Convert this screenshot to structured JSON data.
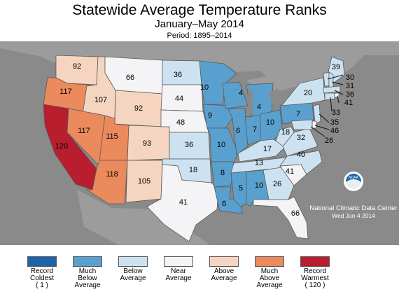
{
  "header": {
    "title": "Statewide Average Temperature Ranks",
    "subtitle": "January–May 2014",
    "period": "Period: 1895–2014"
  },
  "colors": {
    "record_coldest": "#1c63ab",
    "much_below": "#5aa0cf",
    "below": "#cde2f1",
    "near": "#f4f4f6",
    "above": "#f6d5c0",
    "much_above": "#ea8a5d",
    "record_warmest": "#b81e2e",
    "ocean": "#8a8a8a"
  },
  "legend": [
    {
      "label": "Record\nColdest\n( 1 )",
      "color": "#1c63ab"
    },
    {
      "label": "Much\nBelow\nAverage",
      "color": "#5aa0cf"
    },
    {
      "label": "Below\nAverage",
      "color": "#cde2f1"
    },
    {
      "label": "Near\nAverage",
      "color": "#f4f4f6"
    },
    {
      "label": "Above\nAverage",
      "color": "#f6d5c0"
    },
    {
      "label": "Much\nAbove\nAverage",
      "color": "#ea8a5d"
    },
    {
      "label": "Record\nWarmest\n( 120 )",
      "color": "#b81e2e"
    }
  ],
  "states": [
    {
      "name": "WA",
      "rank": "92",
      "category": "above"
    },
    {
      "name": "OR",
      "rank": "117",
      "category": "much_above"
    },
    {
      "name": "CA",
      "rank": "120",
      "category": "record_warmest"
    },
    {
      "name": "ID",
      "rank": "107",
      "category": "above"
    },
    {
      "name": "NV",
      "rank": "117",
      "category": "much_above"
    },
    {
      "name": "MT",
      "rank": "66",
      "category": "near"
    },
    {
      "name": "WY",
      "rank": "92",
      "category": "above"
    },
    {
      "name": "UT",
      "rank": "115",
      "category": "much_above"
    },
    {
      "name": "AZ",
      "rank": "118",
      "category": "much_above"
    },
    {
      "name": "CO",
      "rank": "93",
      "category": "above"
    },
    {
      "name": "NM",
      "rank": "105",
      "category": "above"
    },
    {
      "name": "ND",
      "rank": "36",
      "category": "below"
    },
    {
      "name": "SD",
      "rank": "44",
      "category": "near"
    },
    {
      "name": "NE",
      "rank": "48",
      "category": "near"
    },
    {
      "name": "KS",
      "rank": "36",
      "category": "below"
    },
    {
      "name": "OK",
      "rank": "18",
      "category": "below"
    },
    {
      "name": "TX",
      "rank": "41",
      "category": "near"
    },
    {
      "name": "MN",
      "rank": "10",
      "category": "much_below"
    },
    {
      "name": "IA",
      "rank": "9",
      "category": "much_below"
    },
    {
      "name": "MO",
      "rank": "10",
      "category": "much_below"
    },
    {
      "name": "AR",
      "rank": "8",
      "category": "much_below"
    },
    {
      "name": "LA",
      "rank": "6",
      "category": "much_below"
    },
    {
      "name": "WI",
      "rank": "4",
      "category": "much_below"
    },
    {
      "name": "IL",
      "rank": "6",
      "category": "much_below"
    },
    {
      "name": "MI",
      "rank": "4",
      "category": "much_below"
    },
    {
      "name": "IN",
      "rank": "7",
      "category": "much_below"
    },
    {
      "name": "OH",
      "rank": "10",
      "category": "much_below"
    },
    {
      "name": "KY",
      "rank": "17",
      "category": "below"
    },
    {
      "name": "TN",
      "rank": "13",
      "category": "below"
    },
    {
      "name": "MS",
      "rank": "5",
      "category": "much_below"
    },
    {
      "name": "AL",
      "rank": "10",
      "category": "much_below"
    },
    {
      "name": "GA",
      "rank": "26",
      "category": "below"
    },
    {
      "name": "FL",
      "rank": "66",
      "category": "near"
    },
    {
      "name": "SC",
      "rank": "41",
      "category": "near"
    },
    {
      "name": "NC",
      "rank": "40",
      "category": "below"
    },
    {
      "name": "VA",
      "rank": "32",
      "category": "below"
    },
    {
      "name": "WV",
      "rank": "18",
      "category": "below"
    },
    {
      "name": "PA",
      "rank": "7",
      "category": "much_below"
    },
    {
      "name": "NY",
      "rank": "20",
      "category": "below"
    },
    {
      "name": "ME",
      "rank": "39",
      "category": "below"
    },
    {
      "name": "VT",
      "rank": "30",
      "category": "below"
    },
    {
      "name": "NH",
      "rank": "31",
      "category": "below"
    },
    {
      "name": "MA",
      "rank": "36",
      "category": "below"
    },
    {
      "name": "RI",
      "rank": "41",
      "category": "near"
    },
    {
      "name": "CT",
      "rank": "33",
      "category": "below"
    },
    {
      "name": "NJ",
      "rank": "35",
      "category": "below"
    },
    {
      "name": "DE",
      "rank": "46",
      "category": "near"
    },
    {
      "name": "MD",
      "rank": "26",
      "category": "below"
    }
  ],
  "ncdc": {
    "logo_text": "NOAA",
    "name": "National Climatic Data Center",
    "date": "Wed Jun  4 2014"
  }
}
